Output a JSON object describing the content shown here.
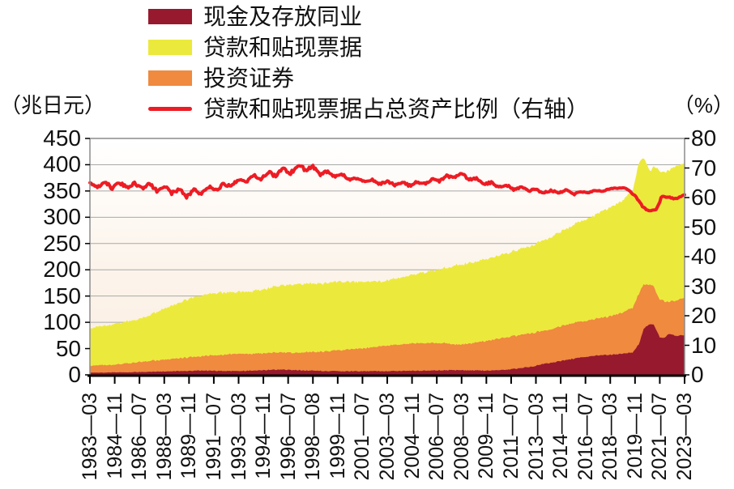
{
  "chart": {
    "unit_left": "（兆日元）",
    "unit_right": "（%）",
    "legend": [
      {
        "label": "现金及存放同业",
        "color": "#97192E",
        "swatch": "area"
      },
      {
        "label": "贷款和贴现票据",
        "color": "#ECE93D",
        "swatch": "area"
      },
      {
        "label": "投资证券",
        "color": "#EF8A3F",
        "swatch": "area"
      },
      {
        "label": "贷款和贴现票据占总资产比例（右轴）",
        "color": "#ED1C24",
        "swatch": "line"
      }
    ],
    "colors": {
      "grid": "#A8A8A8",
      "border": "#8C8C8C",
      "axis": "#000000",
      "plot_bg_top": "#FFFFFF",
      "plot_bg_mid": "#FCF4EB",
      "plot_bg_bottom": "#FAEDE2"
    }
  },
  "chart_data": {
    "type": "area",
    "subtype": "stacked-area-with-line",
    "x_unit": "year-month",
    "x_range": [
      1983.25,
      2023.25
    ],
    "x_labels": [
      "1983—03",
      "1984—11",
      "1986—07",
      "1988—03",
      "1989—11",
      "1991—07",
      "1993—03",
      "1994—11",
      "1996—07",
      "1998—08",
      "1999—11",
      "2001—07",
      "2003—03",
      "2004—11",
      "2006—07",
      "2008—03",
      "2009—11",
      "2011—07",
      "2013—03",
      "2014—11",
      "2016—07",
      "2018—03",
      "2019—11",
      "2021—07",
      "2023—03"
    ],
    "y_left": {
      "label": "（兆日元）",
      "min": 0,
      "max": 450,
      "step": 50,
      "ticks": [
        "450",
        "400",
        "350",
        "300",
        "250",
        "200",
        "150",
        "100",
        "50",
        "0"
      ]
    },
    "y_right": {
      "label": "（%）",
      "min": 0,
      "max": 80,
      "step": 10,
      "ticks": [
        "80",
        "70",
        "60",
        "50",
        "40",
        "30",
        "20",
        "10",
        "0"
      ]
    },
    "grid": "horizontal",
    "legend_position": "top-left",
    "series": [
      {
        "name": "现金及存放同业",
        "type": "area",
        "axis": "left",
        "stack_order": 1,
        "color": "#97192E",
        "keypoints": [
          [
            1983.25,
            4
          ],
          [
            1986,
            5
          ],
          [
            1989,
            7
          ],
          [
            1991,
            8
          ],
          [
            1993,
            7
          ],
          [
            1995,
            9
          ],
          [
            1996,
            10
          ],
          [
            1998,
            8
          ],
          [
            2000,
            7
          ],
          [
            2003,
            7
          ],
          [
            2006,
            8
          ],
          [
            2008,
            9
          ],
          [
            2010,
            8
          ],
          [
            2011,
            9
          ],
          [
            2012,
            12
          ],
          [
            2013,
            16
          ],
          [
            2014,
            22
          ],
          [
            2015,
            27
          ],
          [
            2016,
            32
          ],
          [
            2017,
            36
          ],
          [
            2018,
            38
          ],
          [
            2019,
            40
          ],
          [
            2019.75,
            43
          ],
          [
            2020.17,
            58
          ],
          [
            2020.5,
            88
          ],
          [
            2020.9,
            97
          ],
          [
            2021.2,
            95
          ],
          [
            2021.45,
            80
          ],
          [
            2021.6,
            70
          ],
          [
            2021.9,
            71
          ],
          [
            2022.2,
            79
          ],
          [
            2022.6,
            74
          ],
          [
            2023.25,
            76
          ]
        ]
      },
      {
        "name": "投资证券",
        "type": "area",
        "axis": "left",
        "stack_order": 2,
        "color": "#EF8A3F",
        "keypoints": [
          [
            1983.25,
            13
          ],
          [
            1985,
            15
          ],
          [
            1987,
            20
          ],
          [
            1989,
            24
          ],
          [
            1991,
            28
          ],
          [
            1993,
            33
          ],
          [
            1995,
            32
          ],
          [
            1997,
            33
          ],
          [
            1999,
            37
          ],
          [
            2001,
            42
          ],
          [
            2003,
            48
          ],
          [
            2005,
            52
          ],
          [
            2007,
            52
          ],
          [
            2008,
            48
          ],
          [
            2009,
            52
          ],
          [
            2010,
            57
          ],
          [
            2011,
            61
          ],
          [
            2012,
            63
          ],
          [
            2013,
            64
          ],
          [
            2014,
            63
          ],
          [
            2015,
            66
          ],
          [
            2016,
            68
          ],
          [
            2017,
            69
          ],
          [
            2018,
            72
          ],
          [
            2019,
            78
          ],
          [
            2019.75,
            85
          ],
          [
            2020.2,
            97
          ],
          [
            2020.6,
            80
          ],
          [
            2020.9,
            75
          ],
          [
            2021.2,
            73
          ],
          [
            2021.5,
            70
          ],
          [
            2021.8,
            72
          ],
          [
            2022.2,
            61
          ],
          [
            2022.6,
            66
          ],
          [
            2023.25,
            71
          ]
        ]
      },
      {
        "name": "贷款和贴现票据",
        "type": "area",
        "axis": "left",
        "stack_order": 3,
        "color": "#ECE93D",
        "keypoints": [
          [
            1983.25,
            71
          ],
          [
            1985,
            77
          ],
          [
            1987,
            84
          ],
          [
            1988,
            95
          ],
          [
            1989,
            103
          ],
          [
            1990,
            112
          ],
          [
            1991,
            116
          ],
          [
            1992,
            119
          ],
          [
            1993,
            117
          ],
          [
            1994,
            119
          ],
          [
            1995,
            122
          ],
          [
            1996,
            127
          ],
          [
            1997,
            130
          ],
          [
            1998,
            131
          ],
          [
            1999,
            130
          ],
          [
            2000,
            131
          ],
          [
            2001,
            128
          ],
          [
            2002,
            126
          ],
          [
            2003,
            123
          ],
          [
            2004,
            127
          ],
          [
            2005,
            131
          ],
          [
            2006,
            136
          ],
          [
            2007,
            142
          ],
          [
            2008,
            152
          ],
          [
            2009,
            153
          ],
          [
            2010,
            156
          ],
          [
            2011,
            159
          ],
          [
            2012,
            162
          ],
          [
            2013,
            167
          ],
          [
            2014,
            174
          ],
          [
            2015,
            181
          ],
          [
            2016,
            188
          ],
          [
            2017,
            196
          ],
          [
            2018,
            205
          ],
          [
            2019,
            213
          ],
          [
            2019.75,
            222
          ],
          [
            2020.2,
            250
          ],
          [
            2020.6,
            236
          ],
          [
            2020.95,
            214
          ],
          [
            2021.4,
            242
          ],
          [
            2021.9,
            246
          ],
          [
            2022.3,
            251
          ],
          [
            2022.7,
            256
          ],
          [
            2023.25,
            256
          ]
        ]
      },
      {
        "name": "贷款和贴现票据占总资产比例（右轴）",
        "type": "line",
        "axis": "right",
        "color": "#ED1C24",
        "keypoints": [
          [
            1983.25,
            64
          ],
          [
            1984,
            64.3
          ],
          [
            1985,
            64
          ],
          [
            1986,
            64.3
          ],
          [
            1987,
            63.8
          ],
          [
            1988,
            63.2
          ],
          [
            1989,
            62.3
          ],
          [
            1989.9,
            61.2
          ],
          [
            1990.6,
            62
          ],
          [
            1992,
            63.5
          ],
          [
            1993,
            65
          ],
          [
            1994,
            66.2
          ],
          [
            1995,
            67.5
          ],
          [
            1996,
            68.5
          ],
          [
            1997,
            69.5
          ],
          [
            1997.6,
            70.3
          ],
          [
            1998.4,
            69.3
          ],
          [
            1999,
            68.5
          ],
          [
            2000,
            67.5
          ],
          [
            2001,
            66.3
          ],
          [
            2002,
            65.4
          ],
          [
            2003,
            65
          ],
          [
            2004,
            64.7
          ],
          [
            2005,
            64.6
          ],
          [
            2006,
            65.4
          ],
          [
            2007,
            66.4
          ],
          [
            2008.1,
            67.8
          ],
          [
            2009,
            66.3
          ],
          [
            2010,
            64.8
          ],
          [
            2011,
            63.8
          ],
          [
            2012,
            63.2
          ],
          [
            2013,
            62.5
          ],
          [
            2014,
            62
          ],
          [
            2015,
            62
          ],
          [
            2016,
            61.6
          ],
          [
            2017,
            62
          ],
          [
            2018,
            62.6
          ],
          [
            2018.8,
            63.4
          ],
          [
            2019.4,
            62.8
          ],
          [
            2019.9,
            60.8
          ],
          [
            2020.4,
            57
          ],
          [
            2020.8,
            55.8
          ],
          [
            2021.3,
            55.4
          ],
          [
            2021.55,
            58
          ],
          [
            2021.7,
            60.7
          ],
          [
            2022.1,
            60
          ],
          [
            2022.5,
            59.6
          ],
          [
            2022.9,
            60.2
          ],
          [
            2023.25,
            60.6
          ]
        ]
      }
    ]
  }
}
